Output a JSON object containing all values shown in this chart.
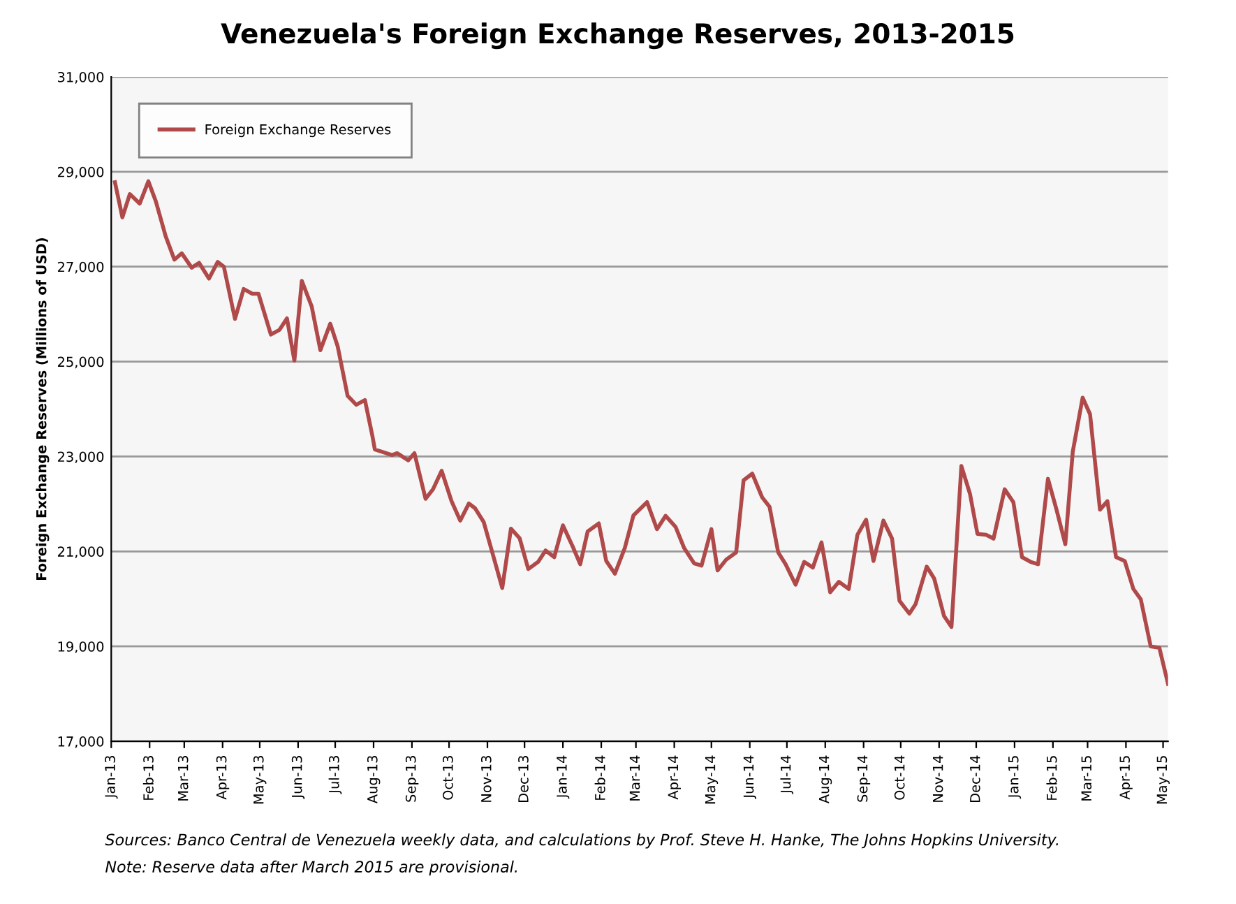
{
  "chart_data": {
    "type": "line",
    "title": "Venezuela's Foreign Exchange Reserves, 2013-2015",
    "ylabel": "Foreign Exchange Reserves (Millions of USD)",
    "annotations": [
      "Sources: Banco Central de Venezuela weekly data, and calculations by Prof. Steve H. Hanke, The Johns Hopkins University.",
      "Note: Reserve data after March 2015 are provisional."
    ],
    "x": [
      "2013-01-04",
      "2013-01-10",
      "2013-01-16",
      "2013-01-24",
      "2013-01-31",
      "2013-02-06",
      "2013-02-14",
      "2013-02-21",
      "2013-02-27",
      "2013-03-07",
      "2013-03-13",
      "2013-03-21",
      "2013-03-28",
      "2013-04-02",
      "2013-04-11",
      "2013-04-18",
      "2013-04-25",
      "2013-04-30",
      "2013-05-10",
      "2013-05-17",
      "2013-05-23",
      "2013-05-29",
      "2013-06-04",
      "2013-06-12",
      "2013-06-19",
      "2013-06-27",
      "2013-07-03",
      "2013-07-11",
      "2013-07-18",
      "2013-07-25",
      "2013-07-31",
      "2013-08-02",
      "2013-08-16",
      "2013-08-20",
      "2013-08-29",
      "2013-09-03",
      "2013-09-12",
      "2013-09-18",
      "2013-09-25",
      "2013-10-03",
      "2013-10-10",
      "2013-10-17",
      "2013-10-22",
      "2013-10-29",
      "2013-11-06",
      "2013-11-13",
      "2013-11-20",
      "2013-11-27",
      "2013-12-04",
      "2013-12-12",
      "2013-12-18",
      "2013-12-25",
      "2014-01-01",
      "2014-01-09",
      "2014-01-15",
      "2014-01-21",
      "2014-01-30",
      "2014-02-05",
      "2014-02-12",
      "2014-02-20",
      "2014-02-27",
      "2014-03-10",
      "2014-03-18",
      "2014-03-25",
      "2014-04-02",
      "2014-04-09",
      "2014-04-17",
      "2014-04-23",
      "2014-05-01",
      "2014-05-06",
      "2014-05-13",
      "2014-05-21",
      "2014-05-27",
      "2014-06-03",
      "2014-06-11",
      "2014-06-17",
      "2014-06-24",
      "2014-06-30",
      "2014-07-08",
      "2014-07-15",
      "2014-07-22",
      "2014-07-29",
      "2014-08-05",
      "2014-08-12",
      "2014-08-20",
      "2014-08-27",
      "2014-09-03",
      "2014-09-09",
      "2014-09-17",
      "2014-09-24",
      "2014-09-30",
      "2014-10-08",
      "2014-10-13",
      "2014-10-22",
      "2014-10-28",
      "2014-11-05",
      "2014-11-11",
      "2014-11-19",
      "2014-11-26",
      "2014-12-02",
      "2014-12-09",
      "2014-12-15",
      "2014-12-24",
      "2014-12-31",
      "2015-01-07",
      "2015-01-14",
      "2015-01-20",
      "2015-01-28",
      "2015-02-04",
      "2015-02-11",
      "2015-02-17",
      "2015-02-25",
      "2015-03-03",
      "2015-03-11",
      "2015-03-17",
      "2015-03-24",
      "2015-03-31",
      "2015-04-07",
      "2015-04-13",
      "2015-04-21",
      "2015-04-28",
      "2015-05-05"
    ],
    "series": [
      {
        "name": "Foreign Exchange Reserves",
        "color": "#b04a4a",
        "values": [
          28780,
          28040,
          28530,
          28330,
          28800,
          28380,
          27640,
          27150,
          27280,
          26980,
          27080,
          26750,
          27100,
          27000,
          25900,
          26530,
          26430,
          26430,
          25570,
          25670,
          25910,
          25020,
          26700,
          26160,
          25240,
          25800,
          25320,
          24280,
          24090,
          24190,
          23440,
          23150,
          23030,
          23070,
          22920,
          23070,
          22110,
          22310,
          22700,
          22060,
          21650,
          22010,
          21910,
          21620,
          20880,
          20230,
          21480,
          21280,
          20630,
          20780,
          21020,
          20880,
          21550,
          21100,
          20730,
          21420,
          21590,
          20800,
          20530,
          21070,
          21760,
          22040,
          21470,
          21750,
          21520,
          21070,
          20750,
          20700,
          21470,
          20600,
          20830,
          20980,
          22500,
          22640,
          22140,
          21940,
          20980,
          20730,
          20300,
          20780,
          20660,
          21190,
          20140,
          20360,
          20210,
          21350,
          21670,
          20800,
          21650,
          21270,
          19960,
          19690,
          19890,
          20680,
          20430,
          19640,
          19410,
          22800,
          22210,
          21370,
          21350,
          21270,
          22310,
          22040,
          20880,
          20780,
          20730,
          22530,
          21870,
          21150,
          23100,
          24240,
          23890,
          21880,
          22060,
          20880,
          20800,
          20210,
          19990,
          19000,
          18970,
          18210
        ]
      }
    ],
    "xlim": [
      "2013-01-01",
      "2015-05-05"
    ],
    "xticks": [
      {
        "value": "2013-01-01",
        "label": "Jan-13"
      },
      {
        "value": "2013-02-01",
        "label": "Feb-13"
      },
      {
        "value": "2013-03-01",
        "label": "Mar-13"
      },
      {
        "value": "2013-04-01",
        "label": "Apr-13"
      },
      {
        "value": "2013-05-01",
        "label": "May-13"
      },
      {
        "value": "2013-06-01",
        "label": "Jun-13"
      },
      {
        "value": "2013-07-01",
        "label": "Jul-13"
      },
      {
        "value": "2013-08-01",
        "label": "Aug-13"
      },
      {
        "value": "2013-09-01",
        "label": "Sep-13"
      },
      {
        "value": "2013-10-01",
        "label": "Oct-13"
      },
      {
        "value": "2013-11-01",
        "label": "Nov-13"
      },
      {
        "value": "2013-12-01",
        "label": "Dec-13"
      },
      {
        "value": "2014-01-01",
        "label": "Jan-14"
      },
      {
        "value": "2014-02-01",
        "label": "Feb-14"
      },
      {
        "value": "2014-03-01",
        "label": "Mar-14"
      },
      {
        "value": "2014-04-01",
        "label": "Apr-14"
      },
      {
        "value": "2014-05-01",
        "label": "May-14"
      },
      {
        "value": "2014-06-01",
        "label": "Jun-14"
      },
      {
        "value": "2014-07-01",
        "label": "Jul-14"
      },
      {
        "value": "2014-08-01",
        "label": "Aug-14"
      },
      {
        "value": "2014-09-01",
        "label": "Sep-14"
      },
      {
        "value": "2014-10-01",
        "label": "Oct-14"
      },
      {
        "value": "2014-11-01",
        "label": "Nov-14"
      },
      {
        "value": "2014-12-01",
        "label": "Dec-14"
      },
      {
        "value": "2015-01-01",
        "label": "Jan-15"
      },
      {
        "value": "2015-02-01",
        "label": "Feb-15"
      },
      {
        "value": "2015-03-01",
        "label": "Mar-15"
      },
      {
        "value": "2015-04-01",
        "label": "Apr-15"
      },
      {
        "value": "2015-05-01",
        "label": "May-15"
      }
    ],
    "ylim": [
      17000,
      31000
    ],
    "yticks": [
      {
        "value": 17000,
        "label": "17,000"
      },
      {
        "value": 19000,
        "label": "19,000"
      },
      {
        "value": 21000,
        "label": "21,000"
      },
      {
        "value": 23000,
        "label": "23,000"
      },
      {
        "value": 25000,
        "label": "25,000"
      },
      {
        "value": 27000,
        "label": "27,000"
      },
      {
        "value": 29000,
        "label": "29,000"
      },
      {
        "value": 31000,
        "label": "31,000"
      }
    ],
    "grid": "y",
    "legend": "top left",
    "marker": "none",
    "line_style": "solid"
  }
}
